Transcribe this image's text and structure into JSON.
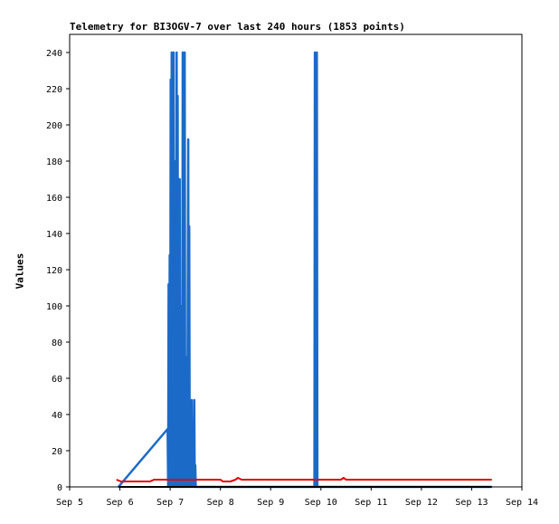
{
  "chart_data": {
    "type": "line",
    "title": "Telemetry for BI3OGV-7 over last 240 hours (1853 points)",
    "ylabel": "Values",
    "xlabel": "",
    "ylim": [
      0,
      250
    ],
    "xlim": [
      5,
      14
    ],
    "grid": false,
    "y_ticks": [
      0,
      20,
      40,
      60,
      80,
      100,
      120,
      140,
      160,
      180,
      200,
      220,
      240
    ],
    "x_ticks": [
      {
        "value": 5,
        "label": "Sep 5"
      },
      {
        "value": 6,
        "label": "Sep 6"
      },
      {
        "value": 7,
        "label": "Sep 7"
      },
      {
        "value": 8,
        "label": "Sep 8"
      },
      {
        "value": 9,
        "label": "Sep 9"
      },
      {
        "value": 10,
        "label": "Sep 10"
      },
      {
        "value": 11,
        "label": "Sep 11"
      },
      {
        "value": 12,
        "label": "Sep 12"
      },
      {
        "value": 13,
        "label": "Sep 13"
      },
      {
        "value": 14,
        "label": "Sep 14"
      }
    ],
    "series": [
      {
        "color": "#1c6ac8",
        "points": [
          [
            5.97,
            0
          ],
          [
            6.95,
            32
          ],
          [
            6.96,
            0
          ],
          [
            6.97,
            112
          ],
          [
            6.98,
            0
          ],
          [
            6.99,
            128
          ],
          [
            7.0,
            0
          ],
          [
            7.01,
            225
          ],
          [
            7.02,
            0
          ],
          [
            7.03,
            240
          ],
          [
            7.04,
            0
          ],
          [
            7.05,
            192
          ],
          [
            7.06,
            0
          ],
          [
            7.07,
            240
          ],
          [
            7.08,
            0
          ],
          [
            7.09,
            180
          ],
          [
            7.1,
            0
          ],
          [
            7.11,
            160
          ],
          [
            7.12,
            0
          ],
          [
            7.13,
            240
          ],
          [
            7.14,
            0
          ],
          [
            7.15,
            216
          ],
          [
            7.16,
            0
          ],
          [
            7.17,
            120
          ],
          [
            7.18,
            0
          ],
          [
            7.19,
            170
          ],
          [
            7.2,
            0
          ],
          [
            7.21,
            100
          ],
          [
            7.22,
            0
          ],
          [
            7.23,
            60
          ],
          [
            7.24,
            0
          ],
          [
            7.25,
            240
          ],
          [
            7.26,
            0
          ],
          [
            7.27,
            112
          ],
          [
            7.28,
            0
          ],
          [
            7.29,
            240
          ],
          [
            7.3,
            0
          ],
          [
            7.31,
            72
          ],
          [
            7.32,
            0
          ],
          [
            7.33,
            60
          ],
          [
            7.34,
            0
          ],
          [
            7.36,
            192
          ],
          [
            7.37,
            0
          ],
          [
            7.38,
            144
          ],
          [
            7.39,
            0
          ],
          [
            7.4,
            32
          ],
          [
            7.41,
            0
          ],
          [
            7.43,
            48
          ],
          [
            7.44,
            0
          ],
          [
            7.46,
            36
          ],
          [
            7.47,
            0
          ],
          [
            7.48,
            48
          ],
          [
            7.49,
            0
          ],
          [
            7.5,
            12
          ],
          [
            7.51,
            0
          ],
          [
            9.87,
            0
          ],
          [
            9.88,
            240
          ],
          [
            9.89,
            0
          ],
          [
            9.9,
            232
          ],
          [
            9.91,
            0
          ],
          [
            9.92,
            240
          ],
          [
            9.93,
            0
          ],
          [
            13.4,
            0
          ]
        ]
      },
      {
        "color": "#e00000",
        "points": [
          [
            5.93,
            4
          ],
          [
            6.02,
            3
          ],
          [
            6.3,
            3
          ],
          [
            6.6,
            3
          ],
          [
            6.68,
            4
          ],
          [
            7.0,
            4
          ],
          [
            7.5,
            4
          ],
          [
            8.0,
            4
          ],
          [
            8.05,
            3
          ],
          [
            8.2,
            3
          ],
          [
            8.3,
            4
          ],
          [
            8.35,
            5
          ],
          [
            8.42,
            4
          ],
          [
            9.0,
            4
          ],
          [
            9.8,
            4
          ],
          [
            10.0,
            4
          ],
          [
            10.4,
            4
          ],
          [
            10.45,
            5
          ],
          [
            10.5,
            4
          ],
          [
            11.0,
            4
          ],
          [
            12.0,
            4
          ],
          [
            13.0,
            4
          ],
          [
            13.4,
            4
          ]
        ]
      },
      {
        "color": "#000000",
        "points": [
          [
            5.97,
            0
          ],
          [
            13.4,
            0
          ]
        ]
      }
    ]
  }
}
